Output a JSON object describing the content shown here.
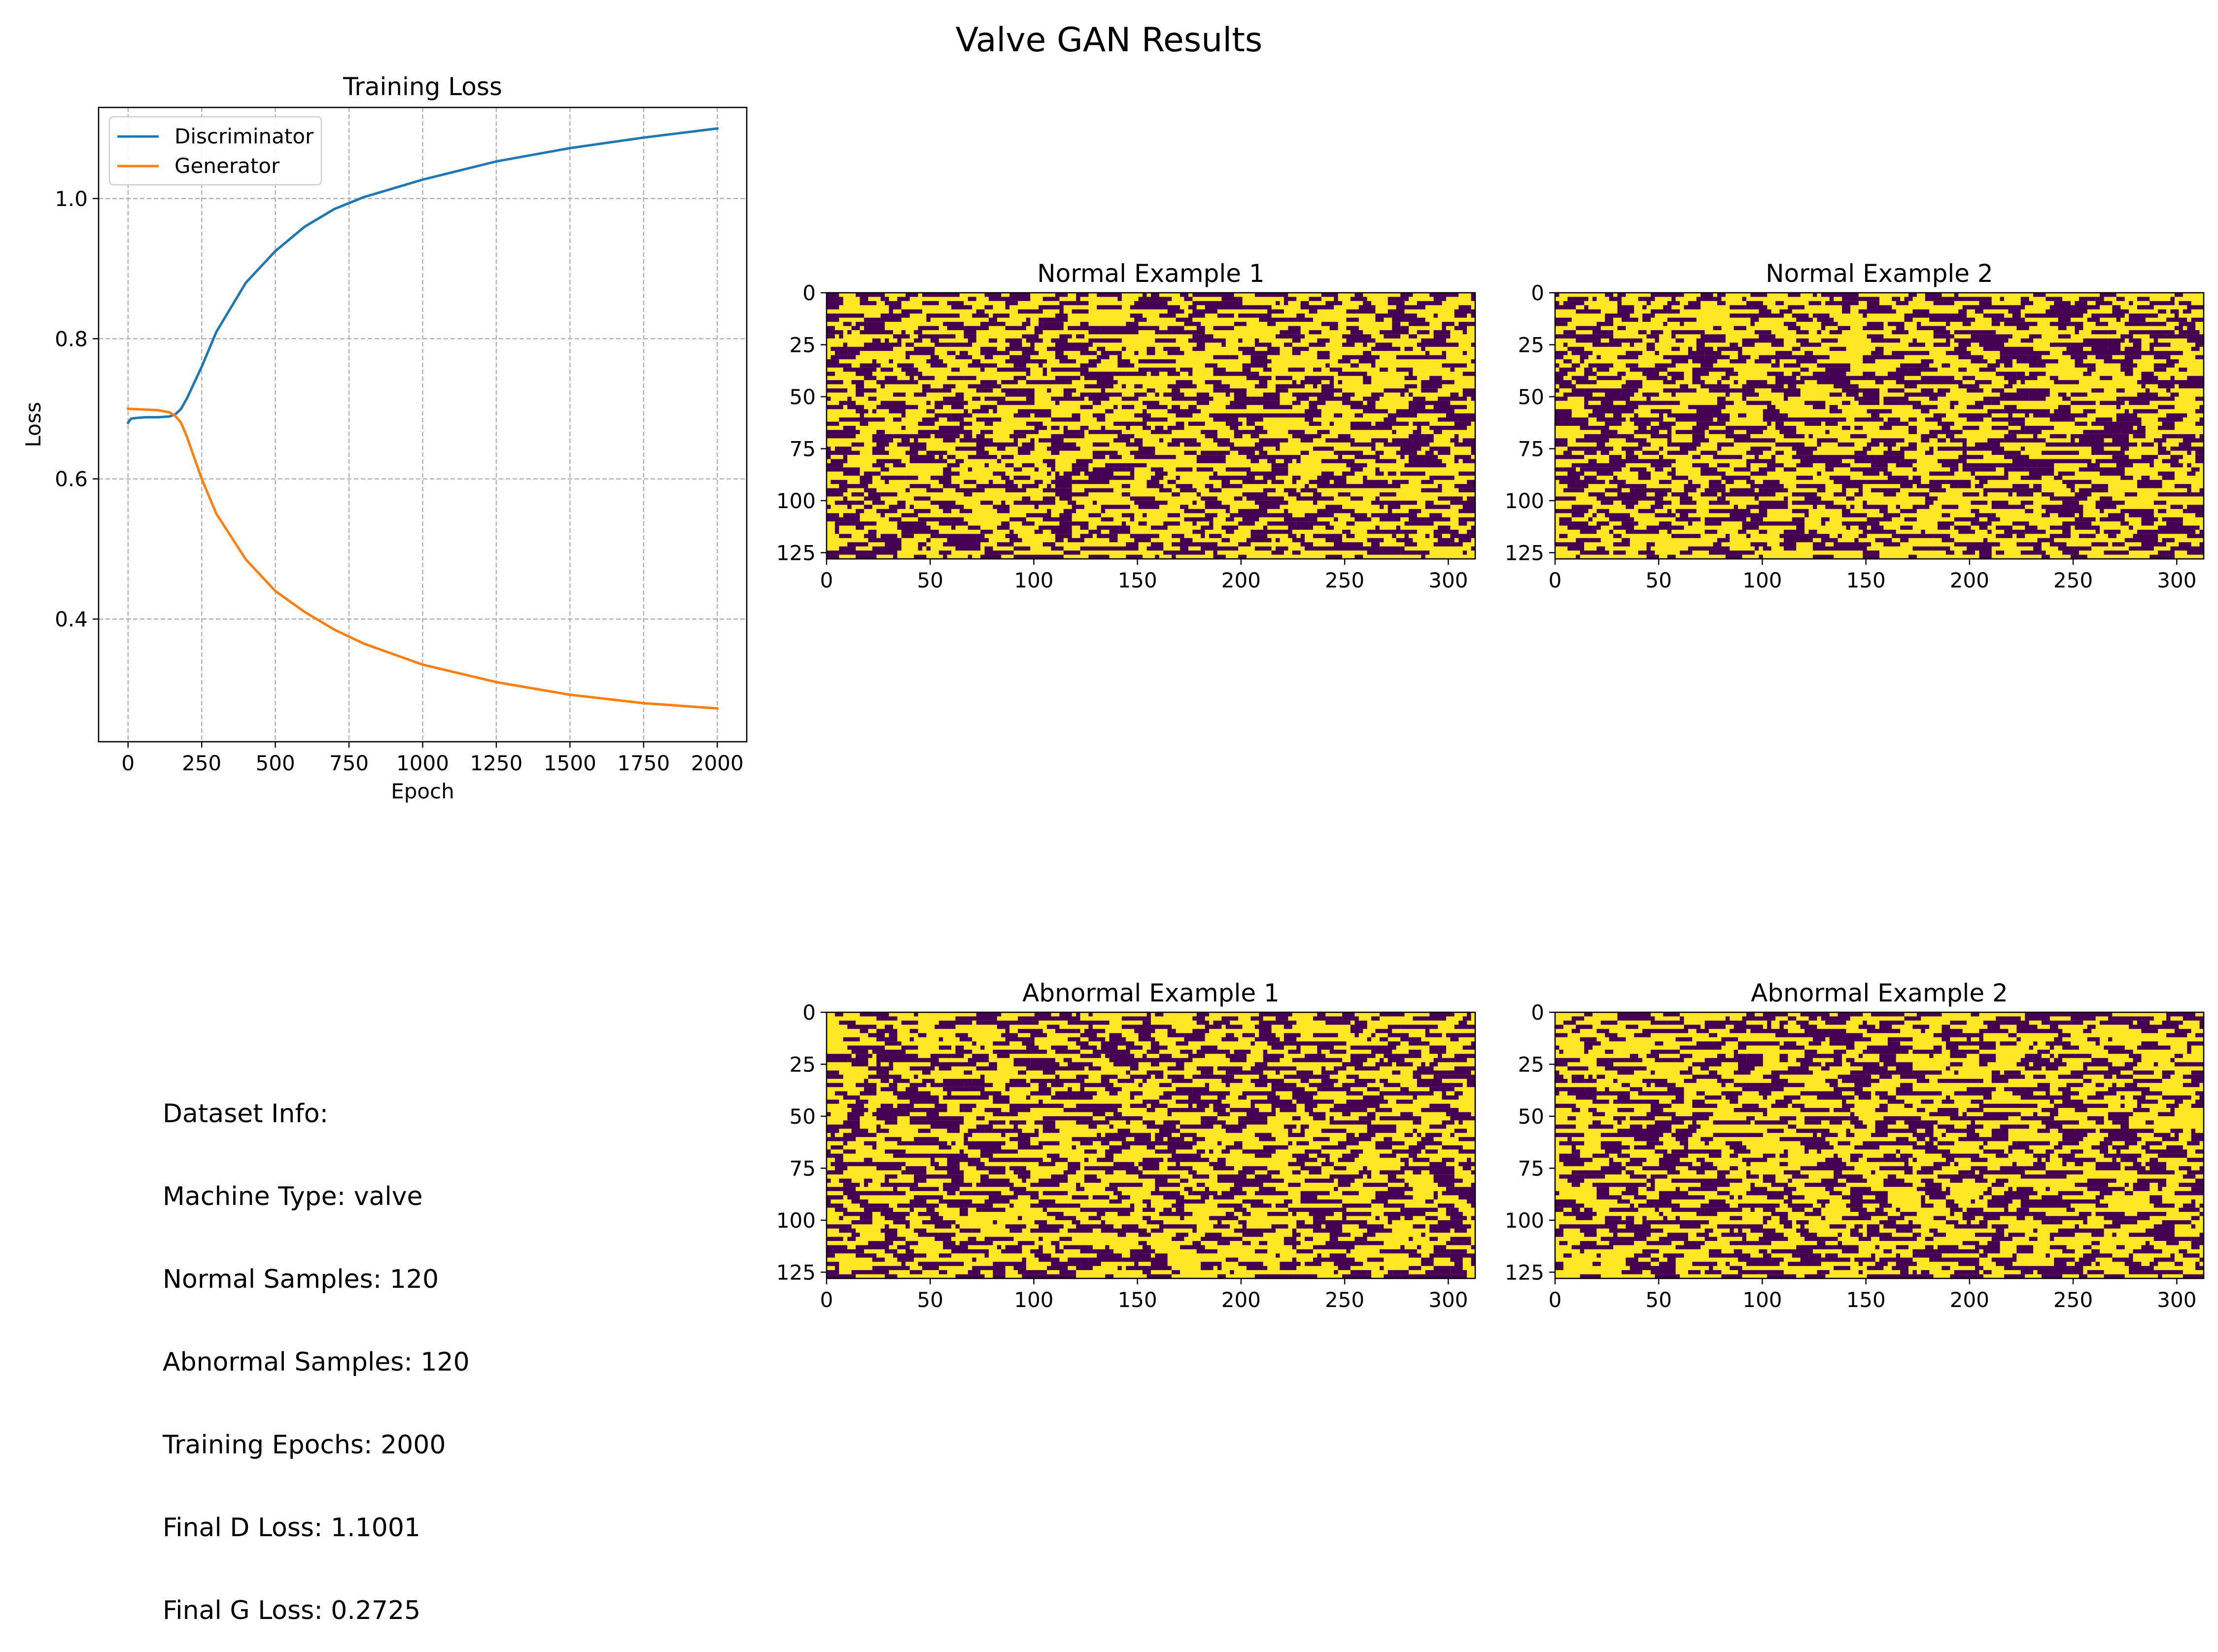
{
  "figure": {
    "title": "Valve GAN Results"
  },
  "chart_data": [
    {
      "type": "line",
      "title": "Training Loss",
      "xlabel": "Epoch",
      "ylabel": "Loss",
      "xlim": [
        -100,
        2100
      ],
      "ylim": [
        0.225,
        1.13
      ],
      "x_ticks": [
        0,
        250,
        500,
        750,
        1000,
        1250,
        1500,
        1750,
        2000
      ],
      "y_ticks": [
        0.4,
        0.6,
        0.8,
        1.0
      ],
      "y_tick_labels": [
        "0.4",
        "0.6",
        "0.8",
        "1.0"
      ],
      "grid": true,
      "legend_position": "top-left",
      "series": [
        {
          "name": "Discriminator",
          "color": "#1f77b4",
          "x": [
            0,
            10,
            30,
            60,
            100,
            140,
            160,
            180,
            200,
            250,
            300,
            400,
            500,
            600,
            700,
            800,
            1000,
            1250,
            1500,
            1750,
            2000
          ],
          "y": [
            0.68,
            0.686,
            0.687,
            0.688,
            0.688,
            0.689,
            0.692,
            0.7,
            0.715,
            0.76,
            0.81,
            0.88,
            0.925,
            0.96,
            0.985,
            1.002,
            1.027,
            1.053,
            1.072,
            1.087,
            1.1
          ]
        },
        {
          "name": "Generator",
          "color": "#ff7f0e",
          "x": [
            0,
            50,
            100,
            140,
            160,
            180,
            200,
            250,
            300,
            400,
            500,
            600,
            700,
            800,
            1000,
            1250,
            1500,
            1750,
            2000
          ],
          "y": [
            0.7,
            0.699,
            0.698,
            0.695,
            0.69,
            0.68,
            0.66,
            0.6,
            0.55,
            0.485,
            0.44,
            0.41,
            0.385,
            0.365,
            0.335,
            0.31,
            0.292,
            0.28,
            0.2725
          ]
        }
      ]
    },
    {
      "type": "heatmap",
      "title": "Normal Example 1",
      "xlim": [
        0,
        313
      ],
      "ylim": [
        128,
        0
      ],
      "x_ticks": [
        0,
        50,
        100,
        150,
        200,
        250,
        300
      ],
      "y_ticks": [
        0,
        25,
        50,
        75,
        100,
        125
      ],
      "colormap": [
        "#440154",
        "#fde725"
      ]
    },
    {
      "type": "heatmap",
      "title": "Normal Example 2",
      "xlim": [
        0,
        313
      ],
      "ylim": [
        128,
        0
      ],
      "x_ticks": [
        0,
        50,
        100,
        150,
        200,
        250,
        300
      ],
      "y_ticks": [
        0,
        25,
        50,
        75,
        100,
        125
      ],
      "colormap": [
        "#440154",
        "#fde725"
      ]
    },
    {
      "type": "heatmap",
      "title": "Abnormal Example 1",
      "xlim": [
        0,
        313
      ],
      "ylim": [
        128,
        0
      ],
      "x_ticks": [
        0,
        50,
        100,
        150,
        200,
        250,
        300
      ],
      "y_ticks": [
        0,
        25,
        50,
        75,
        100,
        125
      ],
      "colormap": [
        "#440154",
        "#fde725"
      ]
    },
    {
      "type": "heatmap",
      "title": "Abnormal Example 2",
      "xlim": [
        0,
        313
      ],
      "ylim": [
        128,
        0
      ],
      "x_ticks": [
        0,
        50,
        100,
        150,
        200,
        250,
        300
      ],
      "y_ticks": [
        0,
        25,
        50,
        75,
        100,
        125
      ],
      "colormap": [
        "#440154",
        "#fde725"
      ]
    }
  ],
  "info": {
    "lines": [
      "Dataset Info:",
      "Machine Type: valve",
      "Normal Samples: 120",
      "Abnormal Samples: 120",
      "Training Epochs: 2000",
      "Final D Loss: 1.1001",
      "Final G Loss: 0.2725"
    ]
  }
}
